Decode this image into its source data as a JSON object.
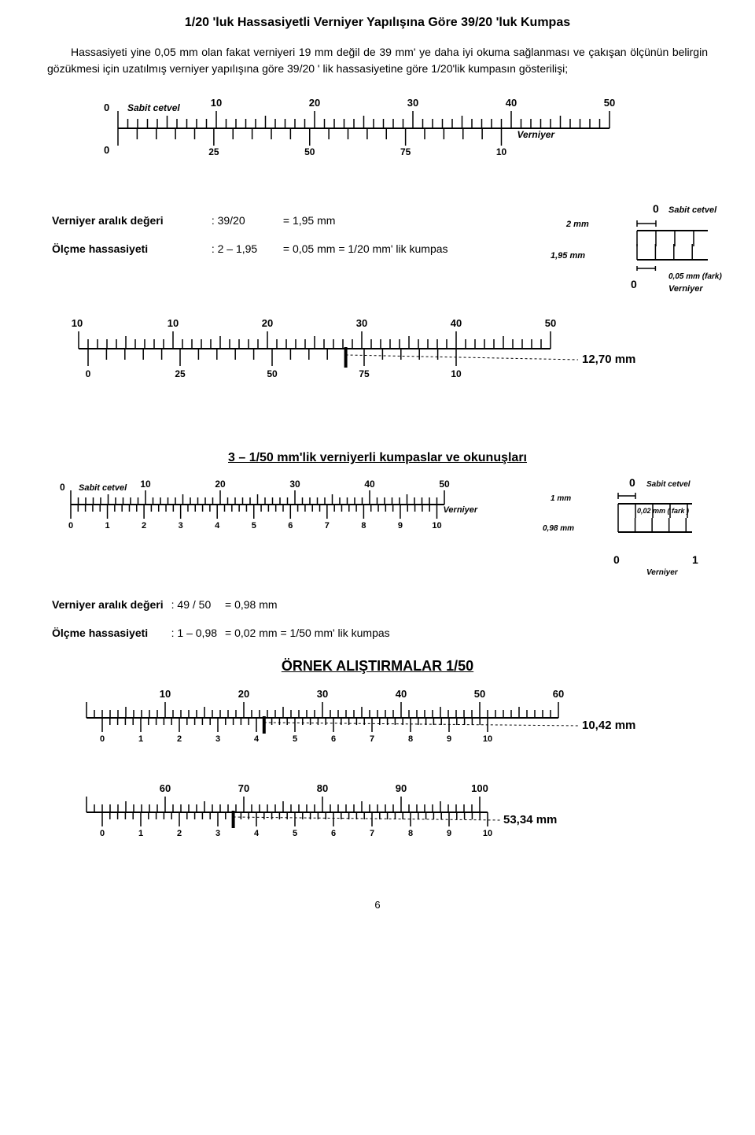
{
  "title": "1/20 'luk Hassasiyetli Verniyer Yapılışına Göre 39/20 'luk Kumpas",
  "para": "Hassasiyeti yine 0,05 mm olan fakat verniyeri 19 mm değil de 39 mm' ye daha iyi okuma sağlanması ve çakışan ölçünün belirgin gözükmesi için  uzatılmış verniyer yapılışına göre 39/20 ' lik hassasiyetine göre 1/20'lik kumpasın gösterilişi;",
  "labels": {
    "sabit_cetvel": "Sabit cetvel",
    "verniyer": "Verniyer"
  },
  "scale1": {
    "main_labels": [
      "10",
      "20",
      "30",
      "40",
      "50"
    ],
    "vernier_labels": [
      "25",
      "50",
      "75",
      "10"
    ],
    "vernier_start": "0",
    "main_start": "0",
    "below_start": "0"
  },
  "defs1": {
    "r1a": "Verniyer aralık değeri",
    "r1b": ": 39/20",
    "r1c": "= 1,95 mm",
    "r2a": "Ölçme hassasiyeti",
    "r2b": ": 2 – 1,95",
    "r2c": "= 0,05 mm  = 1/20 mm' lik kumpas"
  },
  "detail1": {
    "top": "2 mm",
    "left": "1,95 mm",
    "right": "0,05 mm (fark)",
    "zero": "0"
  },
  "scale2": {
    "main_labels": [
      "10",
      "20",
      "30",
      "40",
      "50"
    ],
    "vernier_labels": [
      "0",
      "25",
      "50",
      "75",
      "10"
    ],
    "reading": "12,70 mm"
  },
  "section2_title": "3 – 1/50 mm'lik verniyerli kumpaslar ve okunuşları",
  "scale3": {
    "main_labels": [
      "10",
      "20",
      "30",
      "40",
      "50"
    ],
    "vernier_labels": [
      "0",
      "1",
      "2",
      "3",
      "4",
      "5",
      "6",
      "7",
      "8",
      "9",
      "10"
    ]
  },
  "detail2": {
    "top": "1 mm",
    "left": "0,98 mm",
    "right": "0,02 mm ( fark )",
    "zero": "0",
    "one": "1"
  },
  "defs2": {
    "r1a": "Verniyer aralık değeri",
    "r1b": ": 49 / 50",
    "r1c": "= 0,98 mm",
    "r2a": "Ölçme hassasiyeti",
    "r2b": ": 1 – 0,98",
    "r2c": "= 0,02 mm  = 1/50 mm' lik kumpas"
  },
  "example_title": "ÖRNEK ALIŞTIRMALAR  1/50",
  "ex1": {
    "main_labels": [
      "10",
      "20",
      "30",
      "40",
      "50",
      "60"
    ],
    "vernier_labels": [
      "0",
      "1",
      "2",
      "3",
      "4",
      "5",
      "6",
      "7",
      "8",
      "9",
      "10"
    ],
    "reading": "10,42 mm"
  },
  "ex2": {
    "main_labels": [
      "60",
      "70",
      "80",
      "90",
      "100"
    ],
    "vernier_labels": [
      "0",
      "1",
      "2",
      "3",
      "4",
      "5",
      "6",
      "7",
      "8",
      "9",
      "10"
    ],
    "reading": "53,34 mm"
  },
  "pagenum": "6",
  "style": {
    "color": "#000000",
    "font": "Arial",
    "label_bold_it_size": 12,
    "tick_color": "#000000"
  }
}
